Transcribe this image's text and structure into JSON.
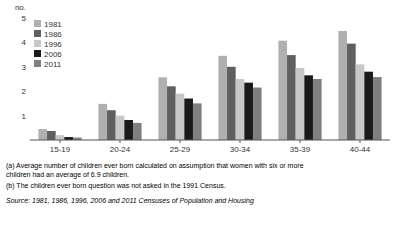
{
  "chart_data": {
    "type": "bar",
    "ylabel": "no.",
    "categories": [
      "15-19",
      "20-24",
      "25-29",
      "30-34",
      "35-39",
      "40-44"
    ],
    "series": [
      {
        "name": "1981",
        "color": "#b0b0b0",
        "values": [
          0.45,
          1.48,
          2.57,
          3.45,
          4.07,
          4.47
        ]
      },
      {
        "name": "1986",
        "color": "#606060",
        "values": [
          0.37,
          1.22,
          2.2,
          3.0,
          3.48,
          3.95
        ]
      },
      {
        "name": "1996",
        "color": "#c8c8c8",
        "values": [
          0.2,
          1.0,
          1.9,
          2.5,
          2.95,
          3.1
        ]
      },
      {
        "name": "2006",
        "color": "#1a1a1a",
        "values": [
          0.12,
          0.82,
          1.7,
          2.35,
          2.65,
          2.8
        ]
      },
      {
        "name": "2011",
        "color": "#808080",
        "values": [
          0.1,
          0.7,
          1.5,
          2.15,
          2.5,
          2.58
        ]
      }
    ],
    "ylim": [
      0,
      5
    ],
    "yticks": [
      1,
      2,
      3,
      4,
      5
    ],
    "grid": false,
    "legend": "upper left",
    "footnotes": [
      "(a) Average number of children ever born calculated on assumption that women with six or more",
      "children had an average of 6.9 children.",
      "(b) The children ever born question was not asked in the 1991 Census."
    ],
    "source": "Source: 1981, 1986, 1996, 2006 and 2011 Censuses of Population and Housing"
  }
}
